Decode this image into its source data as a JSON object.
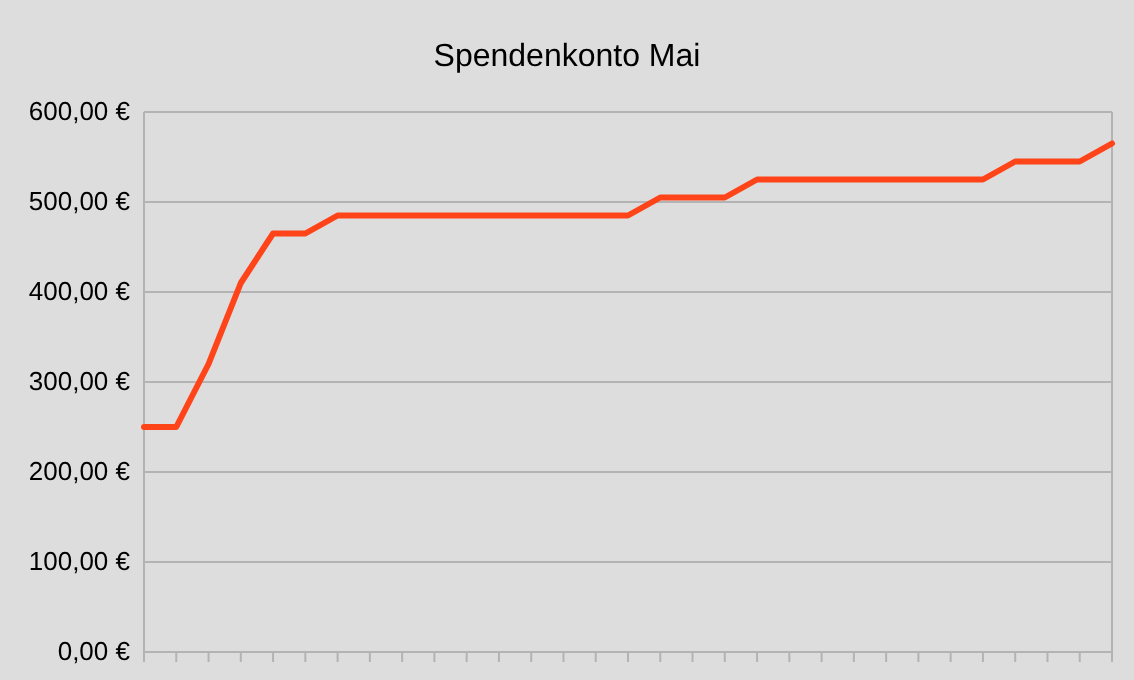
{
  "chart_data": {
    "type": "line",
    "title": "Spendenkonto Mai",
    "categories": [
      null,
      null,
      null,
      null,
      null,
      null,
      null,
      null,
      null,
      null,
      null,
      null,
      null,
      null,
      null,
      null,
      null,
      null,
      null,
      null,
      null,
      null,
      null,
      null,
      null,
      null,
      null,
      null,
      null,
      null,
      null
    ],
    "series": [
      {
        "color": "#ff4419",
        "values": [
          250,
          250,
          320,
          410,
          465,
          465,
          485,
          485,
          485,
          485,
          485,
          485,
          485,
          485,
          485,
          485,
          505,
          505,
          505,
          525,
          525,
          525,
          525,
          525,
          525,
          525,
          525,
          545,
          545,
          545,
          565
        ]
      }
    ],
    "ylim": [
      0,
      600
    ],
    "yticks": [
      {
        "value": 0,
        "label": "0,00 €"
      },
      {
        "value": 100,
        "label": "100,00 €"
      },
      {
        "value": 200,
        "label": "200,00 €"
      },
      {
        "value": 300,
        "label": "300,00 €"
      },
      {
        "value": 400,
        "label": "400,00 €"
      },
      {
        "value": 500,
        "label": "500,00 €"
      },
      {
        "value": 600,
        "label": "600,00 €"
      }
    ],
    "grid": "y",
    "marker": "none",
    "line_style": "solid"
  }
}
